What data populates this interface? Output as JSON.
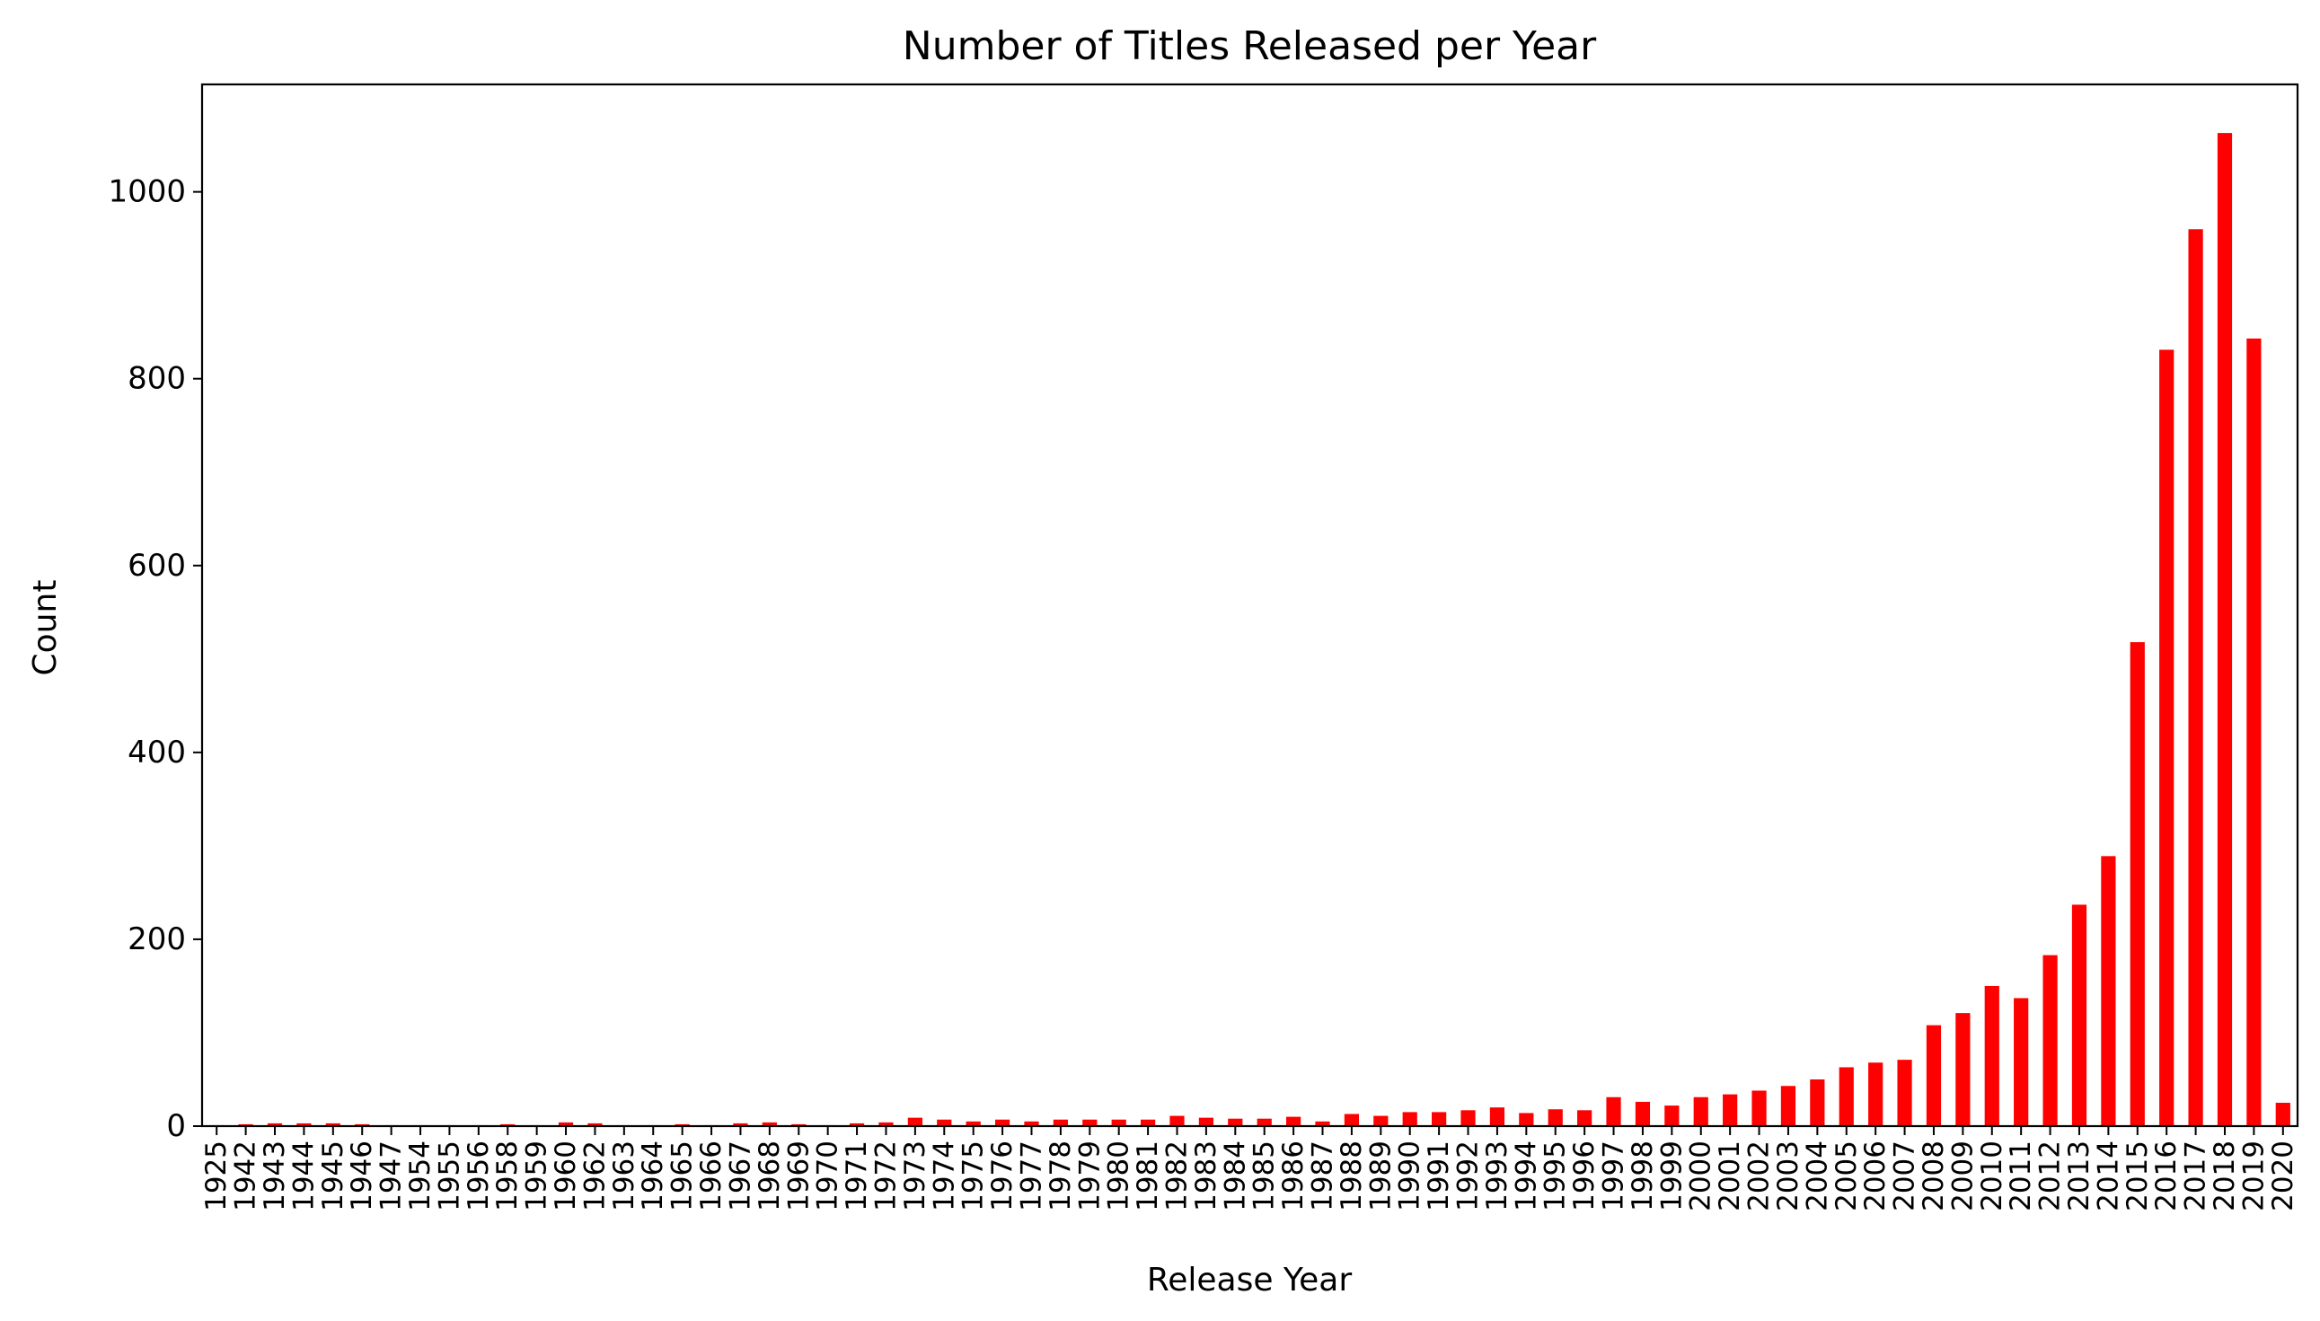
{
  "chart_data": {
    "type": "bar",
    "title": "Number of Titles Released per Year",
    "xlabel": "Release Year",
    "ylabel": "Count",
    "ylim": [
      0,
      1115
    ],
    "yticks": [
      0,
      200,
      400,
      600,
      800,
      1000
    ],
    "grid": false,
    "legend": "none",
    "bar_color": "#ff0000",
    "categories": [
      "1925",
      "1942",
      "1943",
      "1944",
      "1945",
      "1946",
      "1947",
      "1954",
      "1955",
      "1956",
      "1958",
      "1959",
      "1960",
      "1962",
      "1963",
      "1964",
      "1965",
      "1966",
      "1967",
      "1968",
      "1969",
      "1970",
      "1971",
      "1972",
      "1973",
      "1974",
      "1975",
      "1976",
      "1977",
      "1978",
      "1979",
      "1980",
      "1981",
      "1982",
      "1983",
      "1984",
      "1985",
      "1986",
      "1987",
      "1988",
      "1989",
      "1990",
      "1991",
      "1992",
      "1993",
      "1994",
      "1995",
      "1996",
      "1997",
      "1998",
      "1999",
      "2000",
      "2001",
      "2002",
      "2003",
      "2004",
      "2005",
      "2006",
      "2007",
      "2008",
      "2009",
      "2010",
      "2011",
      "2012",
      "2013",
      "2014",
      "2015",
      "2016",
      "2017",
      "2018",
      "2019",
      "2020"
    ],
    "values": [
      1,
      2,
      3,
      3,
      3,
      2,
      1,
      1,
      1,
      1,
      2,
      1,
      4,
      3,
      1,
      1,
      2,
      1,
      3,
      4,
      2,
      1,
      3,
      4,
      9,
      7,
      5,
      7,
      5,
      7,
      7,
      7,
      7,
      11,
      9,
      8,
      8,
      10,
      5,
      13,
      11,
      15,
      15,
      17,
      20,
      14,
      18,
      17,
      31,
      26,
      22,
      31,
      34,
      38,
      43,
      50,
      63,
      68,
      71,
      108,
      121,
      150,
      137,
      183,
      237,
      289,
      518,
      831,
      960,
      1063,
      843,
      25
    ]
  }
}
